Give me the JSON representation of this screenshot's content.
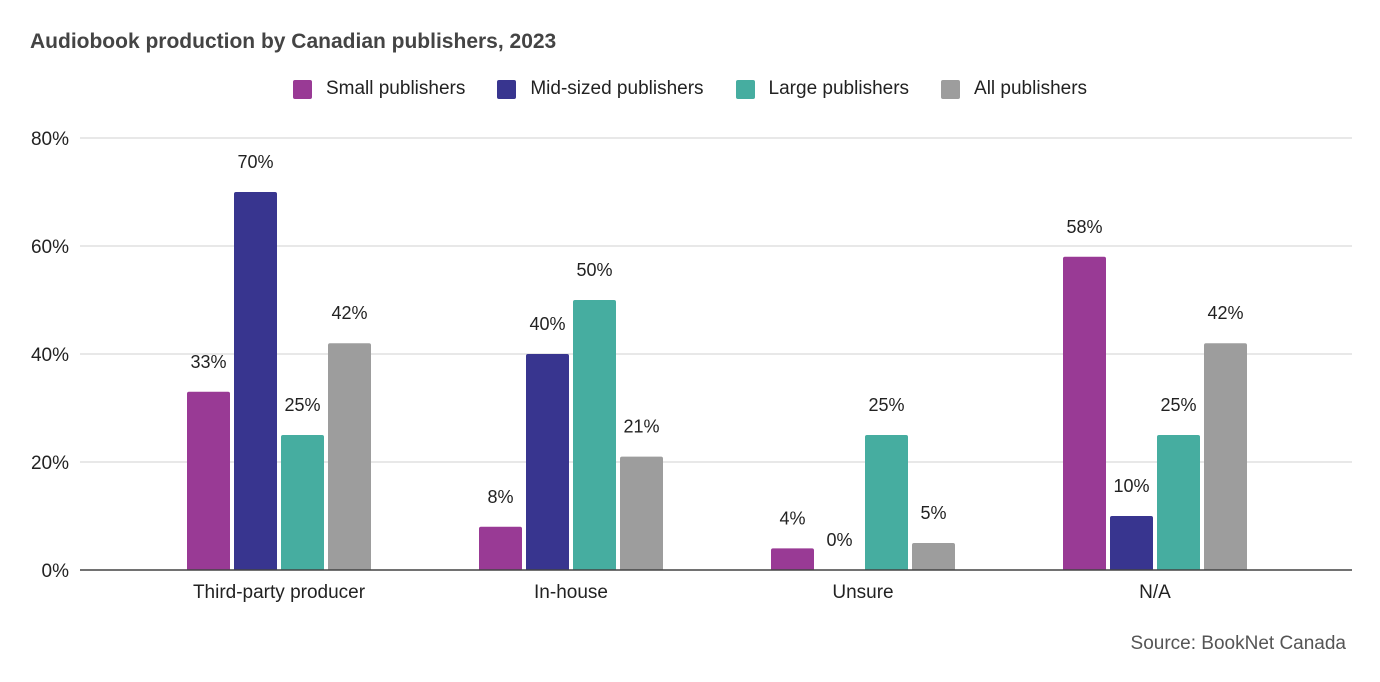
{
  "chart_data": {
    "type": "bar",
    "title": "Audiobook production by Canadian publishers, 2023",
    "categories": [
      "Third-party producer",
      "In-house",
      "Unsure",
      "N/A"
    ],
    "series": [
      {
        "name": "Small publishers",
        "color": "#993a95",
        "values": [
          33,
          8,
          4,
          58
        ],
        "labels": [
          "33%",
          "8%",
          "4%",
          "58%"
        ]
      },
      {
        "name": "Mid-sized publishers",
        "color": "#38358f",
        "values": [
          70,
          40,
          0,
          10
        ],
        "labels": [
          "70%",
          "40%",
          "0%",
          "10%"
        ]
      },
      {
        "name": "Large publishers",
        "color": "#46ada0",
        "values": [
          25,
          50,
          25,
          25
        ],
        "labels": [
          "25%",
          "50%",
          "25%",
          "25%"
        ]
      },
      {
        "name": "All publishers",
        "color": "#9d9d9d",
        "values": [
          42,
          21,
          5,
          42
        ],
        "labels": [
          "42%",
          "21%",
          "5%",
          "42%"
        ]
      }
    ],
    "ylim": [
      0,
      80
    ],
    "yticks": [
      0,
      20,
      40,
      60,
      80
    ],
    "ytick_labels": [
      "0%",
      "20%",
      "40%",
      "60%",
      "80%"
    ],
    "xlabel": "",
    "ylabel": "",
    "grid": true,
    "legend_position": "top-center"
  },
  "source": "Source: BookNet Canada"
}
